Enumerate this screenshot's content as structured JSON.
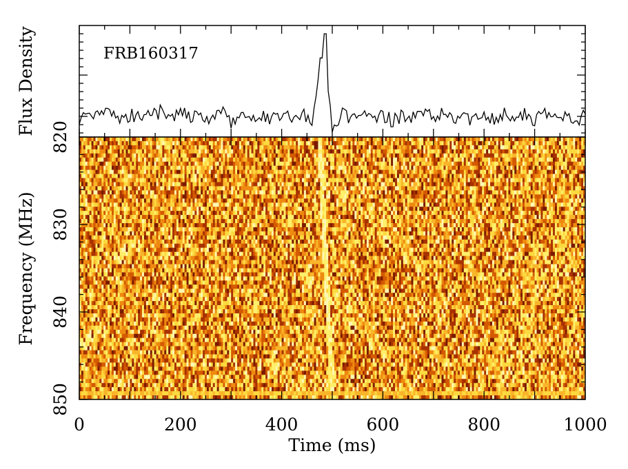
{
  "chart_data": [
    {
      "type": "line",
      "name": "flux-profile",
      "annotation": "FRB160317",
      "ylabel": "Flux Density",
      "xlim": [
        0,
        1000
      ],
      "ylim": [
        -0.25,
        1.1
      ],
      "x_step_ms": 4,
      "baseline_points": [
        [
          0,
          -0.04
        ],
        [
          20,
          -0.02
        ],
        [
          40,
          0.04
        ],
        [
          60,
          0.0
        ],
        [
          80,
          -0.03
        ],
        [
          100,
          0.03
        ],
        [
          120,
          -0.04
        ],
        [
          140,
          0.0
        ],
        [
          160,
          0.05
        ],
        [
          180,
          -0.05
        ],
        [
          200,
          0.04
        ],
        [
          220,
          -0.03
        ],
        [
          240,
          0.02
        ],
        [
          260,
          -0.05
        ],
        [
          280,
          0.06
        ],
        [
          300,
          -0.06
        ],
        [
          320,
          0.04
        ],
        [
          340,
          -0.1
        ],
        [
          360,
          0.03
        ],
        [
          380,
          -0.05
        ],
        [
          400,
          0.02
        ],
        [
          420,
          -0.04
        ],
        [
          440,
          0.05
        ],
        [
          460,
          -0.02
        ],
        [
          470,
          0.35
        ],
        [
          478,
          0.78
        ],
        [
          486,
          0.55
        ],
        [
          492,
          0.28
        ],
        [
          496,
          0.1
        ],
        [
          500,
          -0.14
        ],
        [
          520,
          0.03
        ],
        [
          540,
          -0.03
        ],
        [
          560,
          0.05
        ],
        [
          580,
          -0.08
        ],
        [
          600,
          0.0
        ],
        [
          620,
          -0.05
        ],
        [
          640,
          0.03
        ],
        [
          660,
          -0.02
        ],
        [
          680,
          0.05
        ],
        [
          700,
          -0.04
        ],
        [
          720,
          0.03
        ],
        [
          740,
          -0.05
        ],
        [
          760,
          0.02
        ],
        [
          780,
          -0.06
        ],
        [
          800,
          0.05
        ],
        [
          820,
          -0.03
        ],
        [
          840,
          0.04
        ],
        [
          860,
          -0.04
        ],
        [
          880,
          0.02
        ],
        [
          900,
          -0.06
        ],
        [
          920,
          0.04
        ],
        [
          940,
          -0.02
        ],
        [
          960,
          0.05
        ],
        [
          980,
          -0.03
        ],
        [
          1000,
          0.0
        ]
      ],
      "peak": {
        "x": 486,
        "y": 1.0
      },
      "noise_amplitude": 0.09
    },
    {
      "type": "heatmap",
      "name": "dynamic-spectrum",
      "xlabel": "Time (ms)",
      "ylabel": "Frequency (MHz)",
      "xlim": [
        0,
        1000
      ],
      "ylim": [
        820,
        850
      ],
      "x_ticks": [
        0,
        200,
        400,
        600,
        800,
        1000
      ],
      "y_ticks": [
        820,
        830,
        840,
        850
      ],
      "n_time_bins": 250,
      "n_channels": 64,
      "burst_sweep": {
        "start_ms": 475,
        "end_ms": 500,
        "start_freq": 820,
        "end_freq": 850
      },
      "colormap": [
        "#7a1a00",
        "#a83200",
        "#d45a00",
        "#ee8a10",
        "#f9b52a",
        "#fcd93f",
        "#ffef6a",
        "#fff7b0"
      ]
    }
  ]
}
